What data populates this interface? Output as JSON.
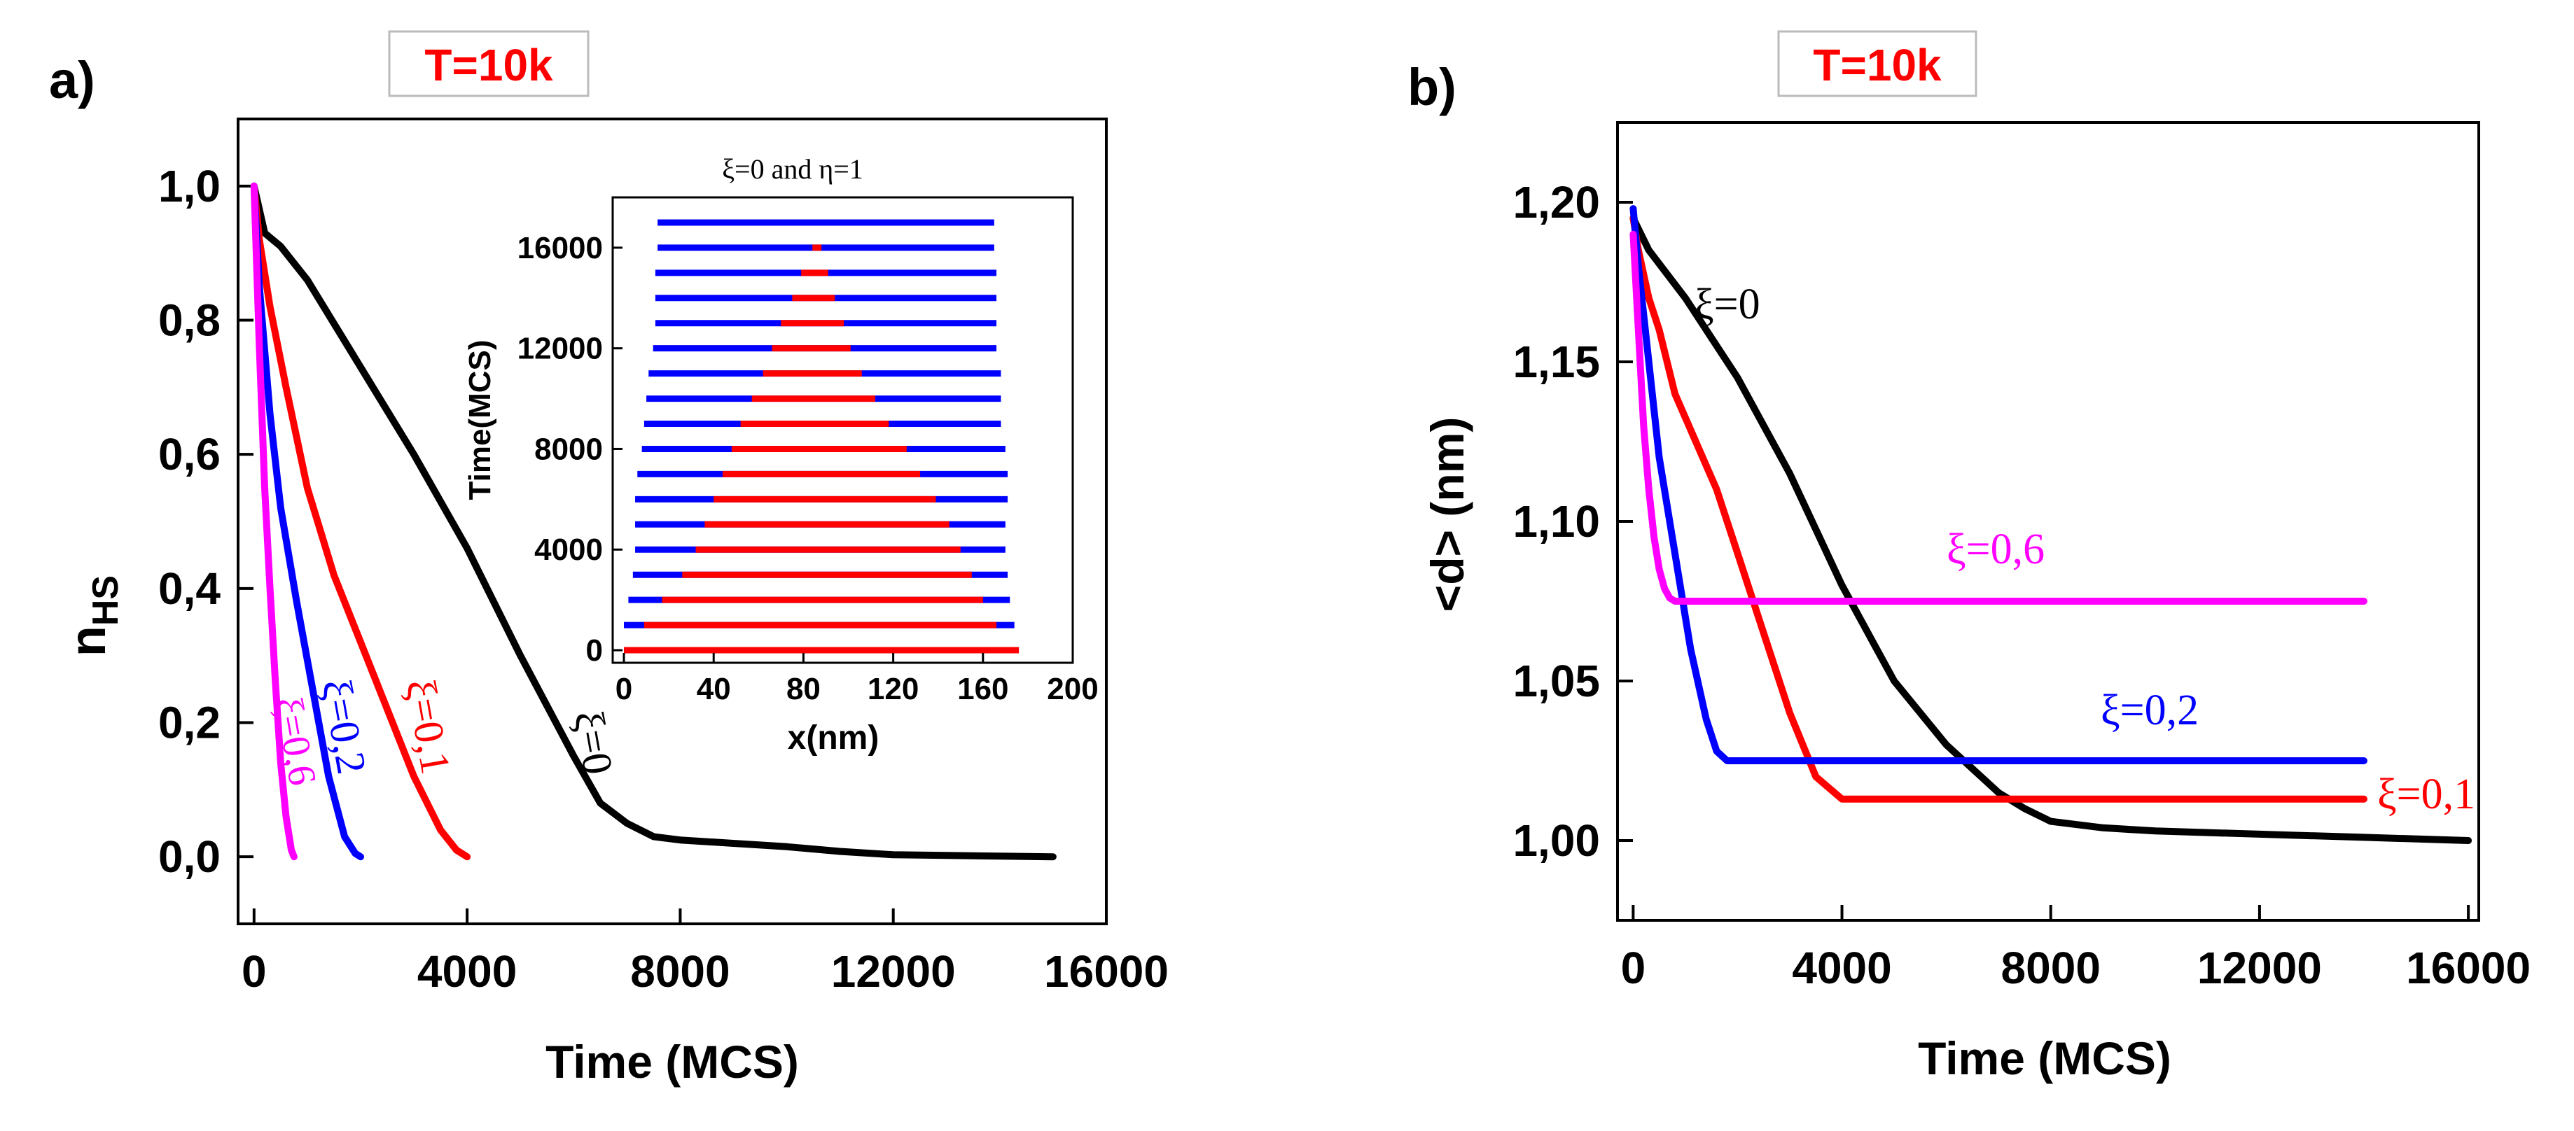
{
  "panel_labels": [
    "a)",
    "b)"
  ],
  "chart_data": [
    {
      "type": "line",
      "panel": "a)",
      "title": "T=10k",
      "xlabel": "Time (MCS)",
      "ylabel": "n",
      "ylabel_sub": "HS",
      "xlim": [
        -300,
        16000
      ],
      "ylim": [
        -0.1,
        1.1
      ],
      "xticks": [
        0,
        4000,
        8000,
        12000,
        16000
      ],
      "yticks": [
        0.0,
        0.2,
        0.4,
        0.6,
        0.8,
        1.0
      ],
      "ytick_labels": [
        "0,0",
        "0,2",
        "0,4",
        "0,6",
        "0,8",
        "1,0"
      ],
      "grid": false,
      "series": [
        {
          "name": "ξ=0",
          "color": "#000000",
          "x": [
            0,
            200,
            500,
            1000,
            2000,
            3000,
            4000,
            5000,
            6000,
            6500,
            7000,
            7500,
            8000,
            9000,
            10000,
            11000,
            12000,
            13000,
            14000,
            15000
          ],
          "y": [
            1.0,
            0.93,
            0.91,
            0.86,
            0.73,
            0.6,
            0.46,
            0.3,
            0.15,
            0.08,
            0.05,
            0.03,
            0.025,
            0.02,
            0.015,
            0.008,
            0.003,
            0.002,
            0.001,
            0.0
          ]
        },
        {
          "name": "ξ=0,1",
          "color": "#ff0000",
          "x": [
            0,
            100,
            300,
            600,
            1000,
            1500,
            2000,
            2500,
            3000,
            3500,
            3800,
            4000
          ],
          "y": [
            1.0,
            0.92,
            0.82,
            0.7,
            0.55,
            0.42,
            0.32,
            0.22,
            0.12,
            0.04,
            0.01,
            0.0
          ]
        },
        {
          "name": "ξ=0,2",
          "color": "#0000ff",
          "x": [
            0,
            100,
            300,
            500,
            800,
            1100,
            1400,
            1700,
            1900,
            2000
          ],
          "y": [
            1.0,
            0.85,
            0.66,
            0.52,
            0.38,
            0.25,
            0.12,
            0.03,
            0.005,
            0.0
          ]
        },
        {
          "name": "ξ=0,6",
          "color": "#ff00ff",
          "x": [
            0,
            100,
            200,
            300,
            400,
            500,
            600,
            700,
            750
          ],
          "y": [
            1.0,
            0.76,
            0.55,
            0.4,
            0.26,
            0.14,
            0.06,
            0.01,
            0.0
          ]
        }
      ],
      "series_labels": [
        "ξ=0",
        "ξ=0,1",
        "ξ=0,2",
        "ξ=0,6"
      ]
    },
    {
      "type": "heatmap",
      "panel": "a) inset",
      "title": "ξ=0 and η=1",
      "xlabel": "x(nm)",
      "ylabel": "Time(MCS)",
      "xlim": [
        -5,
        200
      ],
      "ylim": [
        -500,
        18000
      ],
      "xticks": [
        0,
        40,
        80,
        120,
        160,
        200
      ],
      "yticks": [
        0,
        4000,
        8000,
        12000,
        16000
      ],
      "colors": {
        "state_a": "#0000ff",
        "state_b": "#ff0000"
      },
      "rows": [
        {
          "time": 0,
          "x_start": 0,
          "x_end": 176,
          "red_start": 0,
          "red_end": 176
        },
        {
          "time": 1000,
          "x_start": 0,
          "x_end": 174,
          "red_start": 9,
          "red_end": 166
        },
        {
          "time": 2000,
          "x_start": 2,
          "x_end": 172,
          "red_start": 17,
          "red_end": 160
        },
        {
          "time": 3000,
          "x_start": 4,
          "x_end": 171,
          "red_start": 26,
          "red_end": 155
        },
        {
          "time": 4000,
          "x_start": 5,
          "x_end": 170,
          "red_start": 32,
          "red_end": 150
        },
        {
          "time": 5000,
          "x_start": 5,
          "x_end": 170,
          "red_start": 36,
          "red_end": 145
        },
        {
          "time": 6000,
          "x_start": 5,
          "x_end": 171,
          "red_start": 40,
          "red_end": 139
        },
        {
          "time": 7000,
          "x_start": 6,
          "x_end": 171,
          "red_start": 44,
          "red_end": 132
        },
        {
          "time": 8000,
          "x_start": 8,
          "x_end": 170,
          "red_start": 48,
          "red_end": 126
        },
        {
          "time": 9000,
          "x_start": 9,
          "x_end": 168,
          "red_start": 52,
          "red_end": 118
        },
        {
          "time": 10000,
          "x_start": 10,
          "x_end": 168,
          "red_start": 57,
          "red_end": 112
        },
        {
          "time": 11000,
          "x_start": 11,
          "x_end": 168,
          "red_start": 62,
          "red_end": 106
        },
        {
          "time": 12000,
          "x_start": 13,
          "x_end": 166,
          "red_start": 66,
          "red_end": 101
        },
        {
          "time": 13000,
          "x_start": 14,
          "x_end": 166,
          "red_start": 70,
          "red_end": 98
        },
        {
          "time": 14000,
          "x_start": 14,
          "x_end": 166,
          "red_start": 75,
          "red_end": 94
        },
        {
          "time": 15000,
          "x_start": 14,
          "x_end": 166,
          "red_start": 79,
          "red_end": 91
        },
        {
          "time": 16000,
          "x_start": 15,
          "x_end": 165,
          "red_start": 84,
          "red_end": 88
        },
        {
          "time": 17000,
          "x_start": 15,
          "x_end": 165,
          "red_start": null,
          "red_end": null
        }
      ]
    },
    {
      "type": "line",
      "panel": "b)",
      "title": "T=10k",
      "xlabel": "Time (MCS)",
      "ylabel": "<d> (nm)",
      "xlim": [
        -300,
        16200
      ],
      "ylim": [
        0.975,
        1.225
      ],
      "xticks": [
        0,
        4000,
        8000,
        12000,
        16000
      ],
      "yticks": [
        1.0,
        1.05,
        1.1,
        1.15,
        1.2
      ],
      "ytick_labels": [
        "1,00",
        "1,05",
        "1,10",
        "1,15",
        "1,20"
      ],
      "grid": false,
      "series": [
        {
          "name": "ξ=0",
          "color": "#000000",
          "x": [
            0,
            300,
            1000,
            2000,
            3000,
            4000,
            5000,
            6000,
            7000,
            7500,
            8000,
            9000,
            10000,
            12000,
            14000,
            16000
          ],
          "y": [
            1.195,
            1.185,
            1.17,
            1.145,
            1.115,
            1.08,
            1.05,
            1.03,
            1.015,
            1.01,
            1.006,
            1.004,
            1.003,
            1.002,
            1.001,
            1.0
          ]
        },
        {
          "name": "ξ=0,1",
          "color": "#ff0000",
          "x": [
            0,
            100,
            300,
            500,
            800,
            1200,
            1600,
            2000,
            2500,
            3000,
            3500,
            4000,
            5000,
            8000,
            14000
          ],
          "y": [
            1.195,
            1.185,
            1.17,
            1.16,
            1.14,
            1.125,
            1.11,
            1.09,
            1.065,
            1.04,
            1.02,
            1.013,
            1.013,
            1.013,
            1.013
          ]
        },
        {
          "name": "ξ=0,2",
          "color": "#0000ff",
          "x": [
            0,
            100,
            300,
            500,
            800,
            1100,
            1400,
            1600,
            1800,
            2000,
            4000,
            8000,
            14000
          ],
          "y": [
            1.198,
            1.18,
            1.15,
            1.12,
            1.09,
            1.06,
            1.038,
            1.028,
            1.025,
            1.025,
            1.025,
            1.025,
            1.025
          ]
        },
        {
          "name": "ξ=0,6",
          "color": "#ff00ff",
          "x": [
            0,
            100,
            200,
            300,
            400,
            500,
            600,
            700,
            800,
            1000,
            4000,
            8000,
            14000
          ],
          "y": [
            1.19,
            1.16,
            1.13,
            1.11,
            1.095,
            1.085,
            1.079,
            1.076,
            1.075,
            1.075,
            1.075,
            1.075,
            1.075
          ]
        }
      ],
      "series_labels": [
        "ξ=0",
        "ξ=0,1",
        "ξ=0,2",
        "ξ=0,6"
      ]
    }
  ]
}
